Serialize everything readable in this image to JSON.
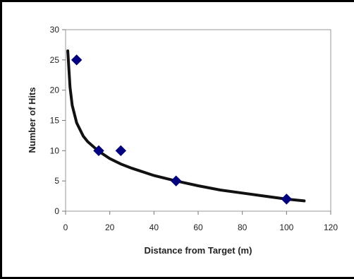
{
  "chart_data": {
    "type": "scatter",
    "title": "",
    "xlabel": "Distance from Target (m)",
    "ylabel": "Number of Hits",
    "xlim": [
      0,
      120
    ],
    "ylim": [
      0,
      30
    ],
    "xticks": [
      "0",
      "20",
      "40",
      "60",
      "80",
      "100",
      "120"
    ],
    "yticks": [
      "0",
      "5",
      "10",
      "15",
      "20",
      "25",
      "30"
    ],
    "grid": false,
    "legend": "none",
    "series": [
      {
        "points": [
          {
            "x": 5,
            "y": 25
          },
          {
            "x": 15,
            "y": 10
          },
          {
            "x": 25,
            "y": 10
          },
          {
            "x": 50,
            "y": 5
          },
          {
            "x": 100,
            "y": 2
          }
        ],
        "marker": "diamond",
        "color": "#000080"
      }
    ],
    "trendline": {
      "type": "logarithmic",
      "color": "#111111",
      "samples": [
        {
          "x": 1,
          "y": 26.5
        },
        {
          "x": 2,
          "y": 20.5
        },
        {
          "x": 3,
          "y": 17.5
        },
        {
          "x": 5,
          "y": 14.6
        },
        {
          "x": 8,
          "y": 12.4
        },
        {
          "x": 10,
          "y": 11.5
        },
        {
          "x": 15,
          "y": 9.9
        },
        {
          "x": 20,
          "y": 8.7
        },
        {
          "x": 25,
          "y": 7.8
        },
        {
          "x": 30,
          "y": 7.1
        },
        {
          "x": 40,
          "y": 5.9
        },
        {
          "x": 50,
          "y": 5.0
        },
        {
          "x": 60,
          "y": 4.2
        },
        {
          "x": 70,
          "y": 3.5
        },
        {
          "x": 80,
          "y": 3.0
        },
        {
          "x": 90,
          "y": 2.5
        },
        {
          "x": 100,
          "y": 2.0
        },
        {
          "x": 108,
          "y": 1.7
        }
      ]
    }
  }
}
